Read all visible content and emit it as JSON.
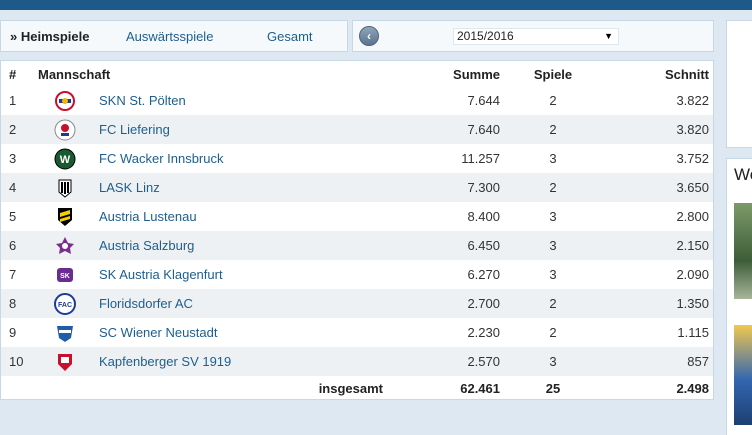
{
  "tabs": [
    {
      "label": "» Heimspiele",
      "active": true
    },
    {
      "label": "Auswärtsspiele",
      "active": false
    },
    {
      "label": "Gesamt",
      "active": false
    }
  ],
  "season": {
    "selected": "2015/2016"
  },
  "table": {
    "headers": {
      "rank": "#",
      "team": "Mannschaft",
      "sum": "Summe",
      "games": "Spiele",
      "avg": "Schnitt"
    },
    "rows": [
      {
        "rank": "1",
        "team": "SKN St. Pölten",
        "sum": "7.644",
        "games": "2",
        "avg": "3.822",
        "logo": "skn-st-poelten-crest-icon"
      },
      {
        "rank": "2",
        "team": "FC Liefering",
        "sum": "7.640",
        "games": "2",
        "avg": "3.820",
        "logo": "fc-liefering-crest-icon"
      },
      {
        "rank": "3",
        "team": "FC Wacker Innsbruck",
        "sum": "11.257",
        "games": "3",
        "avg": "3.752",
        "logo": "wacker-innsbruck-crest-icon"
      },
      {
        "rank": "4",
        "team": "LASK Linz",
        "sum": "7.300",
        "games": "2",
        "avg": "3.650",
        "logo": "lask-linz-crest-icon"
      },
      {
        "rank": "5",
        "team": "Austria Lustenau",
        "sum": "8.400",
        "games": "3",
        "avg": "2.800",
        "logo": "austria-lustenau-crest-icon"
      },
      {
        "rank": "6",
        "team": "Austria Salzburg",
        "sum": "6.450",
        "games": "3",
        "avg": "2.150",
        "logo": "austria-salzburg-crest-icon"
      },
      {
        "rank": "7",
        "team": "SK Austria Klagenfurt",
        "sum": "6.270",
        "games": "3",
        "avg": "2.090",
        "logo": "austria-klagenfurt-crest-icon"
      },
      {
        "rank": "8",
        "team": "Floridsdorfer AC",
        "sum": "2.700",
        "games": "2",
        "avg": "1.350",
        "logo": "floridsdorfer-ac-crest-icon"
      },
      {
        "rank": "9",
        "team": "SC Wiener Neustadt",
        "sum": "2.230",
        "games": "2",
        "avg": "1.115",
        "logo": "wiener-neustadt-crest-icon"
      },
      {
        "rank": "10",
        "team": "Kapfenberger SV 1919",
        "sum": "2.570",
        "games": "3",
        "avg": "857",
        "logo": "kapfenberger-sv-crest-icon"
      }
    ],
    "total": {
      "label": "insgesamt",
      "sum": "62.461",
      "games": "25",
      "avg": "2.498"
    }
  },
  "sidebar": {
    "title": "We"
  },
  "colors": {
    "link": "#1e5e8e",
    "header_bar": "#1d5a8a",
    "page_bg": "#dde8f2",
    "row_alt": "#eef1f4"
  }
}
